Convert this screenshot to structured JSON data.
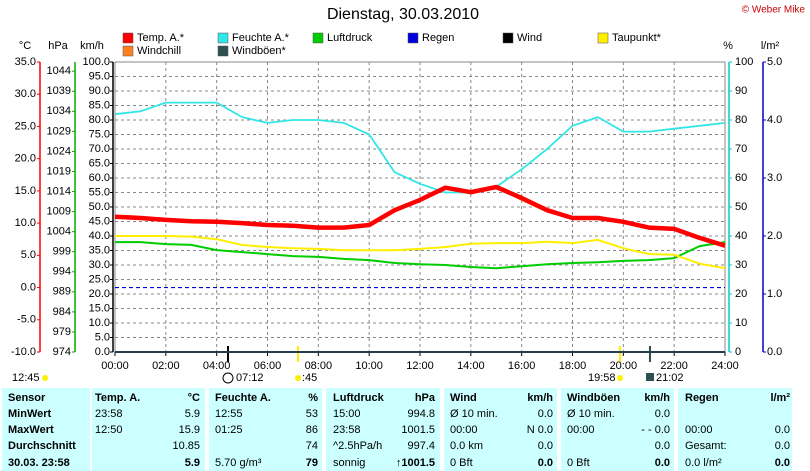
{
  "chart_data": {
    "type": "line",
    "title": "Dienstag, 30.03.2010",
    "copyright": "© Weber Mike",
    "x": [
      0,
      1,
      2,
      3,
      4,
      5,
      6,
      7,
      8,
      9,
      10,
      11,
      12,
      13,
      14,
      15,
      16,
      17,
      18,
      19,
      20,
      21,
      22,
      23,
      24
    ],
    "xlim": [
      0,
      24
    ],
    "xticks": [
      {
        "value": 0,
        "label": "00:00"
      },
      {
        "value": 2,
        "label": "02:00"
      },
      {
        "value": 4,
        "label": "04:00"
      },
      {
        "value": 6,
        "label": "06:00"
      },
      {
        "value": 8,
        "label": "08:00"
      },
      {
        "value": 10,
        "label": "10:00"
      },
      {
        "value": 12,
        "label": "12:00"
      },
      {
        "value": 14,
        "label": "14:00"
      },
      {
        "value": 16,
        "label": "16:00"
      },
      {
        "value": 18,
        "label": "18:00"
      },
      {
        "value": 20,
        "label": "20:00"
      },
      {
        "value": 22,
        "label": "22:00"
      },
      {
        "value": 24,
        "label": "24:00"
      }
    ],
    "ylabel": "km/h",
    "ylim": [
      0,
      100
    ],
    "yticks": [
      {
        "value": 0,
        "label": "0.0"
      },
      {
        "value": 5,
        "label": "5.0"
      },
      {
        "value": 10,
        "label": "10.0"
      },
      {
        "value": 15,
        "label": "15.0"
      },
      {
        "value": 20,
        "label": "20.0"
      },
      {
        "value": 25,
        "label": "25.0"
      },
      {
        "value": 30,
        "label": "30.0"
      },
      {
        "value": 35,
        "label": "35.0"
      },
      {
        "value": 40,
        "label": "40.0"
      },
      {
        "value": 45,
        "label": "45.0"
      },
      {
        "value": 50,
        "label": "50.0"
      },
      {
        "value": 55,
        "label": "55.0"
      },
      {
        "value": 60,
        "label": "60.0"
      },
      {
        "value": 65,
        "label": "65.0"
      },
      {
        "value": 70,
        "label": "70.0"
      },
      {
        "value": 75,
        "label": "75.0"
      },
      {
        "value": 80,
        "label": "80.0"
      },
      {
        "value": 85,
        "label": "85.0"
      },
      {
        "value": 90,
        "label": "90.0"
      },
      {
        "value": 95,
        "label": "95.0"
      },
      {
        "value": 100,
        "label": "100.0"
      }
    ],
    "y2label": "%",
    "y2lim": [
      0,
      100
    ],
    "y2ticks": [
      0,
      10,
      20,
      30,
      40,
      50,
      60,
      70,
      80,
      90,
      100
    ],
    "y3label": "°C",
    "y3lim": [
      -10,
      35
    ],
    "y3ticks": [
      {
        "value": -10,
        "label": "-10.0"
      },
      {
        "value": -5,
        "label": "-5.0"
      },
      {
        "value": 0,
        "label": "0.0"
      },
      {
        "value": 5,
        "label": "5.0"
      },
      {
        "value": 10,
        "label": "10.0"
      },
      {
        "value": 15,
        "label": "15.0"
      },
      {
        "value": 20,
        "label": "20.0"
      },
      {
        "value": 25,
        "label": "25.0"
      },
      {
        "value": 30,
        "label": "30.0"
      },
      {
        "value": 35,
        "label": "35.0"
      }
    ],
    "y4label": "hPa",
    "y4lim": [
      974,
      1046.3
    ],
    "y4ticks": [
      974,
      979,
      984,
      989,
      994,
      999,
      1004,
      1009,
      1014,
      1019,
      1024,
      1029,
      1034,
      1039,
      1044
    ],
    "y5label": "l/m²",
    "y5lim": [
      0,
      5
    ],
    "y5ticks": [
      {
        "value": 0,
        "label": "0.0"
      },
      {
        "value": 1,
        "label": "1.0"
      },
      {
        "value": 2,
        "label": "2.0"
      },
      {
        "value": 3,
        "label": "3.0"
      },
      {
        "value": 4,
        "label": "4.0"
      },
      {
        "value": 5,
        "label": "5.0"
      }
    ],
    "grid": true,
    "series": [
      {
        "name": "Temp. A.*",
        "color": "#ff0000",
        "axis": "y3",
        "values": [
          11.0,
          10.8,
          10.5,
          10.3,
          10.2,
          10.0,
          9.7,
          9.6,
          9.3,
          9.3,
          9.7,
          12.0,
          13.6,
          15.5,
          14.8,
          15.6,
          13.9,
          12.0,
          10.8,
          10.8,
          10.2,
          9.3,
          9.1,
          7.7,
          6.5
        ]
      },
      {
        "name": "Feuchte A.*",
        "color": "#33e6e6",
        "axis": "y2",
        "values": [
          82,
          83,
          86,
          86,
          86,
          81,
          79,
          80,
          80,
          79,
          75,
          62,
          58,
          55,
          55,
          57,
          63,
          70,
          78,
          81,
          76,
          76,
          77,
          78,
          79
        ]
      },
      {
        "name": "Luftdruck",
        "color": "#00cc00",
        "axis": "y4",
        "values": [
          1001.4,
          1001.4,
          1000.9,
          1000.7,
          999.4,
          998.9,
          998.4,
          997.9,
          997.7,
          997.2,
          996.9,
          996.2,
          995.9,
          995.7,
          995.2,
          994.9,
          995.4,
          995.9,
          996.2,
          996.4,
          996.7,
          996.9,
          997.4,
          1000.4,
          1001.4
        ]
      },
      {
        "name": "Regen",
        "color": "#0000dd",
        "axis": "y5",
        "values": [
          0,
          0,
          0,
          0,
          0,
          0,
          0,
          0,
          0,
          0,
          0,
          0,
          0,
          0,
          0,
          0,
          0,
          0,
          0,
          0,
          0,
          0,
          0,
          0,
          0
        ]
      },
      {
        "name": "Wind",
        "color": "#000000",
        "axis": "y",
        "values": [
          0,
          0,
          0,
          0,
          0,
          0,
          0,
          0,
          0,
          0,
          0,
          0,
          0,
          0,
          0,
          0,
          0,
          0,
          0,
          0,
          0,
          0,
          0,
          0,
          0
        ]
      },
      {
        "name": "Taupunkt*",
        "color": "#ffee00",
        "axis": "y3",
        "values": [
          8.0,
          8.0,
          8.0,
          7.9,
          7.5,
          6.6,
          6.3,
          6.1,
          6.0,
          5.8,
          5.8,
          5.8,
          6.0,
          6.3,
          6.8,
          6.9,
          6.9,
          7.1,
          6.9,
          7.4,
          6.1,
          5.2,
          5.1,
          3.7,
          3.0
        ]
      },
      {
        "name": "Windchill",
        "color": "#ff8020",
        "axis": "y3",
        "values": [
          11.0,
          10.8,
          10.5,
          10.3,
          10.2,
          10.0,
          9.7,
          9.6,
          9.3,
          9.3,
          9.7,
          12.2,
          13.4,
          15.5,
          14.8,
          15.6,
          13.6,
          11.8,
          10.8,
          10.8,
          10.2,
          9.3,
          9.1,
          7.7,
          6.6
        ]
      },
      {
        "name": "Windböen*",
        "color": "#2f5050",
        "axis": "y",
        "values": [
          0,
          0,
          0,
          0,
          0,
          0,
          0,
          0,
          0,
          0,
          0,
          0,
          0,
          0,
          0,
          0,
          0,
          0,
          0,
          0,
          0,
          0,
          0,
          0,
          0
        ]
      }
    ],
    "events": [
      "12:45",
      "07:12",
      ":45",
      "19:58",
      "21:02"
    ]
  },
  "table": {
    "header": [
      "Sensor",
      "Temp. A.",
      "°C",
      "Feuchte A.",
      "%",
      "Luftdruck",
      "hPa",
      "Wind",
      "km/h",
      "Windböen",
      "km/h",
      "Regen",
      "l/m²"
    ],
    "rows": [
      [
        "MinWert",
        "23:58",
        "5.9",
        "12:55",
        "53",
        "15:00",
        "994.8",
        "Ø 10 min.",
        "0.0",
        "Ø 10 min.",
        "0.0",
        null,
        null
      ],
      [
        "MaxWert",
        "12:50",
        "15.9",
        "01:25",
        "86",
        "23:58",
        "1001.5",
        "00:00",
        "N 0.0",
        "00:00",
        "- - 0.0",
        "00:00",
        "0.0"
      ],
      [
        "Durchschnitt",
        null,
        "10.85",
        null,
        "74",
        "^2.5hPa/h",
        "997.4",
        "0.0 km",
        "0.0",
        null,
        "0.0",
        "Gesamt:",
        "0.0"
      ],
      [
        "30.03. 23:58",
        null,
        "5.9",
        "5.70 g/m³",
        "79",
        "sonnig",
        "↑1001.5",
        "0 Bft",
        "0.0",
        "0 Bft",
        "0.0",
        "0.0 l/m²",
        "0.0"
      ]
    ]
  }
}
